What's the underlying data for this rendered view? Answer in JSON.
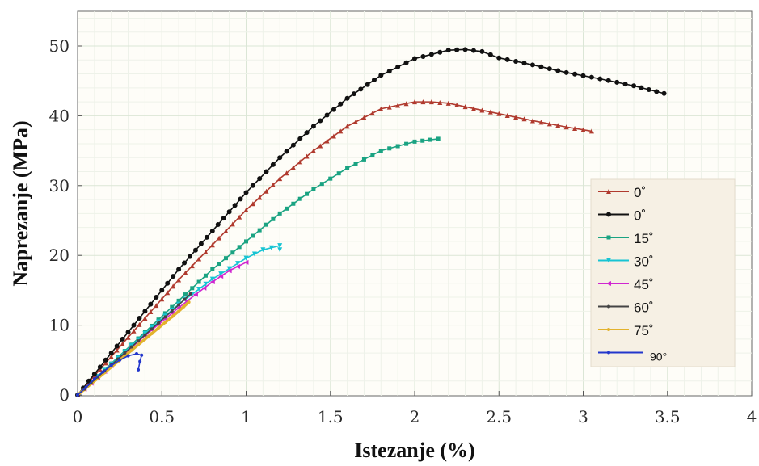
{
  "chart_data": {
    "type": "line",
    "xlabel": "Istezanje (%)",
    "ylabel": "Naprezanje (MPa)",
    "xlim": [
      0,
      4
    ],
    "ylim": [
      0,
      55
    ],
    "xticks": [
      "0",
      "0.5",
      "1",
      "1.5",
      "2",
      "2.5",
      "3",
      "3.5",
      "4"
    ],
    "yticks": [
      "0",
      "10",
      "20",
      "30",
      "40",
      "50"
    ],
    "grid": true,
    "legend_position": "right",
    "series": [
      {
        "name": "0˚",
        "color": "#b03a2e",
        "marker": "triangle",
        "x": [
          0,
          0.2,
          0.4,
          0.6,
          0.8,
          1.0,
          1.2,
          1.4,
          1.6,
          1.8,
          2.0,
          2.1,
          2.2,
          2.3,
          2.5,
          2.7,
          2.9,
          3.05
        ],
        "y": [
          0,
          5.5,
          11,
          16.5,
          21.5,
          26.5,
          31,
          35,
          38.5,
          41,
          42,
          42,
          41.8,
          41.3,
          40.3,
          39.3,
          38.4,
          37.8
        ]
      },
      {
        "name": "0˚",
        "color": "#111111",
        "marker": "circle",
        "x": [
          0,
          0.2,
          0.4,
          0.6,
          0.8,
          1.0,
          1.2,
          1.4,
          1.6,
          1.8,
          2.0,
          2.2,
          2.3,
          2.4,
          2.5,
          2.7,
          2.9,
          3.1,
          3.3,
          3.48
        ],
        "y": [
          0,
          6,
          12,
          18,
          23.5,
          29,
          34,
          38.5,
          42.5,
          45.8,
          48.2,
          49.4,
          49.5,
          49.2,
          48.3,
          47.3,
          46.2,
          45.3,
          44.3,
          43.2
        ]
      },
      {
        "name": "15˚",
        "color": "#1aa382",
        "marker": "square",
        "x": [
          0,
          0.2,
          0.4,
          0.6,
          0.8,
          1.0,
          1.2,
          1.4,
          1.6,
          1.8,
          2.0,
          2.14
        ],
        "y": [
          0,
          4.5,
          9,
          13.5,
          18,
          22,
          26,
          29.5,
          32.5,
          35,
          36.3,
          36.7
        ]
      },
      {
        "name": "30˚",
        "color": "#17c4d3",
        "marker": "down-triangle",
        "x": [
          0,
          0.2,
          0.4,
          0.6,
          0.8,
          1.0,
          1.1,
          1.2,
          1.2
        ],
        "y": [
          0,
          4.4,
          8.8,
          13,
          16.6,
          19.6,
          20.8,
          21.4,
          20.8
        ]
      },
      {
        "name": "45˚",
        "color": "#d026d0",
        "marker": "left-triangle",
        "x": [
          0,
          0.2,
          0.4,
          0.6,
          0.7,
          0.8,
          0.9,
          1.0
        ],
        "y": [
          0,
          4.2,
          8.5,
          12.5,
          14.4,
          16.2,
          17.8,
          19
        ]
      },
      {
        "name": "60˚",
        "color": "#444444",
        "marker": "dot",
        "x": [
          0,
          0.2,
          0.4,
          0.6,
          0.67
        ],
        "y": [
          0,
          4.3,
          8.6,
          12.9,
          14.5
        ]
      },
      {
        "name": "75˚",
        "color": "#e3b22c",
        "marker": "dot",
        "x": [
          0,
          0.2,
          0.4,
          0.6,
          0.66
        ],
        "y": [
          0,
          4,
          8,
          12,
          13.3
        ]
      },
      {
        "name": "90°",
        "color": "#2236cc",
        "marker": "dot",
        "x": [
          0,
          0.05,
          0.1,
          0.15,
          0.2,
          0.25,
          0.3,
          0.35,
          0.38,
          0.37,
          0.36
        ],
        "y": [
          0,
          1.1,
          2.3,
          3.3,
          4.2,
          5,
          5.6,
          5.9,
          5.7,
          4.8,
          3.6
        ]
      }
    ]
  }
}
